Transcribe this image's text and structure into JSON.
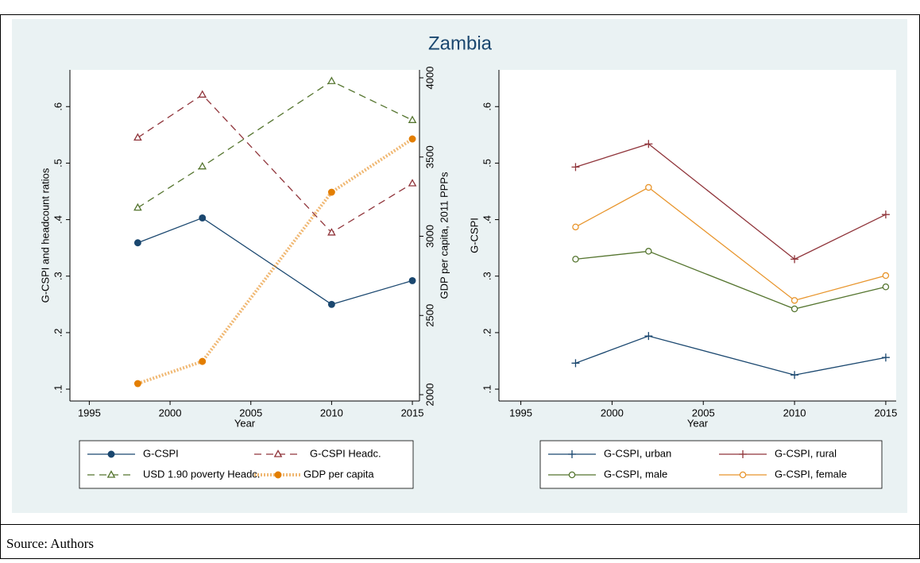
{
  "title": "Zambia",
  "source": "Source: Authors",
  "chart_data": [
    {
      "type": "line",
      "xlabel": "Year",
      "ylabel": "G-CSPI and headcount ratios",
      "y2label": "GDP per capita, 2011 PPPs",
      "x": [
        1998,
        2002,
        2010,
        2015
      ],
      "xlim": [
        1993.8,
        2015.44
      ],
      "xticks": [
        1995,
        2000,
        2005,
        2010,
        2015
      ],
      "ylim": [
        0.079,
        0.665
      ],
      "yticks": [
        {
          "value": 0.1,
          "label": ".1"
        },
        {
          "value": 0.2,
          "label": ".2"
        },
        {
          "value": 0.3,
          "label": ".3"
        },
        {
          "value": 0.4,
          "label": ".4"
        },
        {
          "value": 0.5,
          "label": ".5"
        },
        {
          "value": 0.6,
          "label": ".6"
        }
      ],
      "y2lim": [
        1960,
        4050
      ],
      "y2ticks": [
        2000,
        2500,
        3000,
        3500,
        4000
      ],
      "series": [
        {
          "name": "G-CSPI",
          "color": "#1a476f",
          "marker": "circle",
          "dash": "solid",
          "values": [
            0.359,
            0.403,
            0.25,
            0.292
          ]
        },
        {
          "name": "G-CSPI Headc.",
          "color": "#90353b",
          "marker": "triangle",
          "dash": "dash",
          "values": [
            0.545,
            0.621,
            0.377,
            0.464
          ]
        },
        {
          "name": "USD 1.90 poverty Headc.",
          "color": "#55752f",
          "marker": "triangle",
          "dash": "dash",
          "values": [
            0.421,
            0.494,
            0.645,
            0.576
          ]
        },
        {
          "name": "GDP per capita",
          "color": "#e37e00",
          "marker": "circle",
          "dash": "dot",
          "axis": "y2",
          "values": [
            2070,
            2210,
            3278,
            3614
          ]
        }
      ]
    },
    {
      "type": "line",
      "xlabel": "Year",
      "ylabel": "G-CSPI",
      "x": [
        1998,
        2002,
        2010,
        2015
      ],
      "xlim": [
        1993.8,
        2015.57
      ],
      "xticks": [
        1995,
        2000,
        2005,
        2010,
        2015
      ],
      "ylim": [
        0.079,
        0.665
      ],
      "yticks": [
        {
          "value": 0.1,
          "label": ".1"
        },
        {
          "value": 0.2,
          "label": ".2"
        },
        {
          "value": 0.3,
          "label": ".3"
        },
        {
          "value": 0.4,
          "label": ".4"
        },
        {
          "value": 0.5,
          "label": ".5"
        },
        {
          "value": 0.6,
          "label": ".6"
        }
      ],
      "series": [
        {
          "name": "G-CSPI, urban",
          "color": "#1a476f",
          "marker": "plus",
          "dash": "solid",
          "values": [
            0.146,
            0.194,
            0.125,
            0.156
          ]
        },
        {
          "name": "G-CSPI, rural",
          "color": "#90353b",
          "marker": "plus",
          "dash": "solid",
          "values": [
            0.493,
            0.534,
            0.33,
            0.409
          ]
        },
        {
          "name": "G-CSPI, male",
          "color": "#55752f",
          "marker": "hollow-circle",
          "dash": "solid",
          "values": [
            0.33,
            0.344,
            0.242,
            0.281
          ]
        },
        {
          "name": "G-CSPI, female",
          "color": "#e8952c",
          "marker": "hollow-circle",
          "dash": "solid",
          "values": [
            0.387,
            0.457,
            0.257,
            0.301
          ]
        }
      ]
    }
  ]
}
